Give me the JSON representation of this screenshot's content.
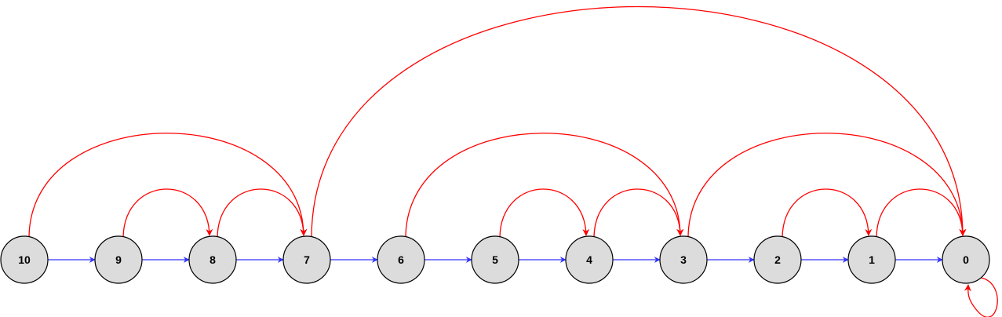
{
  "colors": {
    "node_fill": "#dcdcdc",
    "node_stroke": "#000000",
    "chain_edge": "#3333ff",
    "jump_edge": "#ff0000"
  },
  "nodes": [
    {
      "id": "10",
      "label": "10"
    },
    {
      "id": "9",
      "label": "9"
    },
    {
      "id": "8",
      "label": "8"
    },
    {
      "id": "7",
      "label": "7"
    },
    {
      "id": "6",
      "label": "6"
    },
    {
      "id": "5",
      "label": "5"
    },
    {
      "id": "4",
      "label": "4"
    },
    {
      "id": "3",
      "label": "3"
    },
    {
      "id": "2",
      "label": "2"
    },
    {
      "id": "1",
      "label": "1"
    },
    {
      "id": "0",
      "label": "0"
    }
  ],
  "chain_edges": [
    {
      "from": "10",
      "to": "9"
    },
    {
      "from": "9",
      "to": "8"
    },
    {
      "from": "8",
      "to": "7"
    },
    {
      "from": "7",
      "to": "6"
    },
    {
      "from": "6",
      "to": "5"
    },
    {
      "from": "5",
      "to": "4"
    },
    {
      "from": "4",
      "to": "3"
    },
    {
      "from": "3",
      "to": "2"
    },
    {
      "from": "2",
      "to": "1"
    },
    {
      "from": "1",
      "to": "0"
    }
  ],
  "jump_edges": [
    {
      "from": "10",
      "to": "7"
    },
    {
      "from": "9",
      "to": "8"
    },
    {
      "from": "8",
      "to": "7"
    },
    {
      "from": "7",
      "to": "0"
    },
    {
      "from": "6",
      "to": "3"
    },
    {
      "from": "5",
      "to": "4"
    },
    {
      "from": "4",
      "to": "3"
    },
    {
      "from": "3",
      "to": "0"
    },
    {
      "from": "2",
      "to": "1"
    },
    {
      "from": "1",
      "to": "0"
    },
    {
      "from": "0",
      "to": "0"
    }
  ]
}
